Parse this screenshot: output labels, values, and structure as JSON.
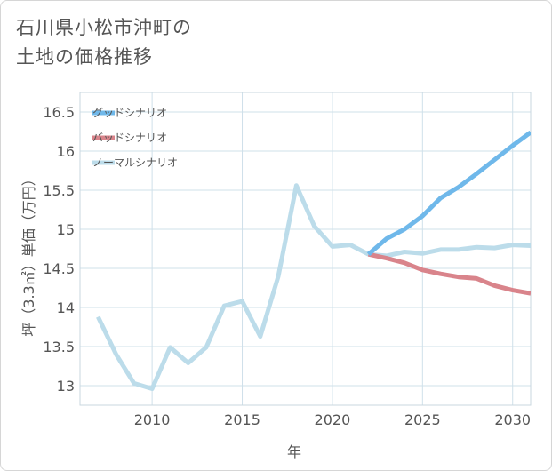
{
  "title": {
    "line1": "石川県小松市沖町の",
    "line2": "土地の価格推移"
  },
  "colors": {
    "good": "#6fb8ea",
    "bad": "#d9848b",
    "normal": "#bcdcea",
    "grid": "#cfe0ea",
    "text": "#555555"
  },
  "chart_data": {
    "type": "line",
    "title": "石川県小松市沖町の土地の価格推移",
    "xlabel": "年",
    "ylabel": "坪（3.3㎡）単価（万円）",
    "xlim": [
      2006,
      2031
    ],
    "ylim": [
      12.75,
      16.75
    ],
    "x_ticks": [
      2010,
      2015,
      2020,
      2025,
      2030
    ],
    "y_ticks": [
      13,
      13.5,
      14,
      14.5,
      15,
      15.5,
      16,
      16.5
    ],
    "x_tick_labels": [
      "2010",
      "2015",
      "2020",
      "2025",
      "2030"
    ],
    "y_tick_labels": [
      "13",
      "13.5",
      "14",
      "14.5",
      "15",
      "15.5",
      "16",
      "16.5"
    ],
    "legend_position": "top-left",
    "series": [
      {
        "name": "グッドシナリオ",
        "color": "#6fb8ea",
        "x": [
          2022,
          2023,
          2024,
          2025,
          2026,
          2027,
          2028,
          2029,
          2030,
          2031
        ],
        "values": [
          14.68,
          14.88,
          15.0,
          15.17,
          15.4,
          15.54,
          15.71,
          15.89,
          16.07,
          16.24
        ]
      },
      {
        "name": "バッドシナリオ",
        "color": "#d9848b",
        "x": [
          2022,
          2023,
          2024,
          2025,
          2026,
          2027,
          2028,
          2029,
          2030,
          2031
        ],
        "values": [
          14.68,
          14.63,
          14.57,
          14.48,
          14.43,
          14.39,
          14.37,
          14.28,
          14.22,
          14.18
        ]
      },
      {
        "name": "ノーマルシナリオ",
        "color": "#bcdcea",
        "x": [
          2007,
          2008,
          2009,
          2010,
          2011,
          2012,
          2013,
          2014,
          2015,
          2016,
          2017,
          2018,
          2019,
          2020,
          2021,
          2022,
          2023,
          2024,
          2025,
          2026,
          2027,
          2028,
          2029,
          2030,
          2031
        ],
        "values": [
          13.88,
          13.4,
          13.03,
          12.96,
          13.49,
          13.29,
          13.49,
          14.02,
          14.08,
          13.63,
          14.4,
          15.56,
          15.04,
          14.78,
          14.8,
          14.68,
          14.66,
          14.71,
          14.69,
          14.74,
          14.74,
          14.77,
          14.76,
          14.8,
          14.79
        ]
      }
    ]
  }
}
